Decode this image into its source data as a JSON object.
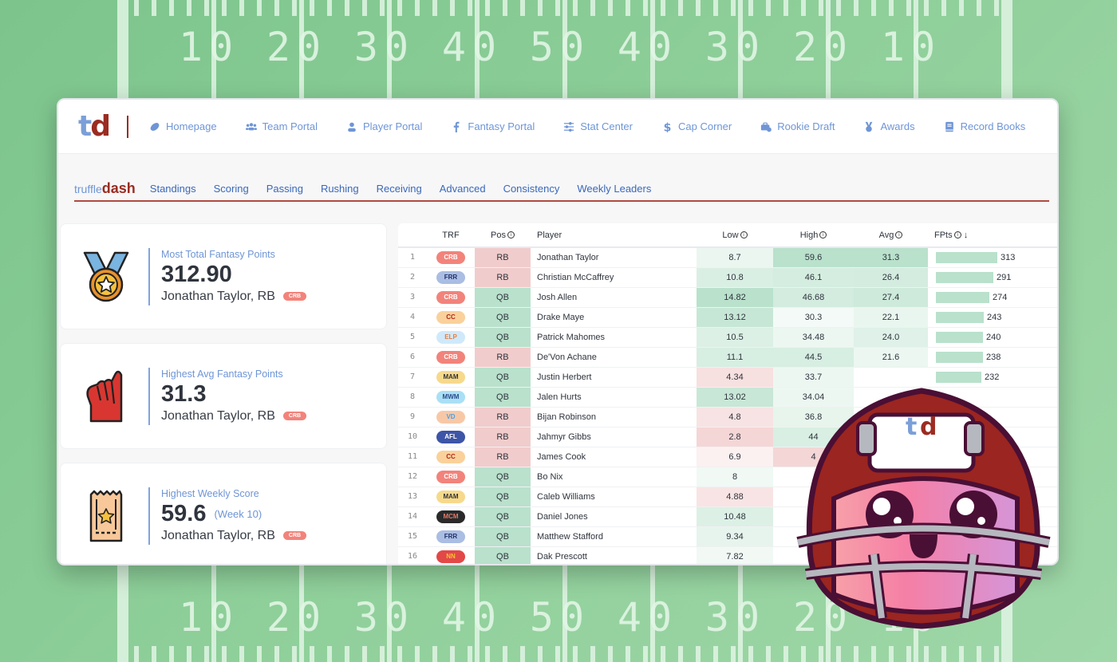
{
  "field": {
    "top_numbers": [
      "10",
      "20",
      "30",
      "40",
      "50",
      "40",
      "30",
      "20",
      "10"
    ],
    "bottom_numbers": [
      "10",
      "20",
      "30",
      "40",
      "50",
      "40",
      "30",
      "20",
      "10"
    ]
  },
  "topnav": {
    "logo": {
      "t": "t",
      "d": "d"
    },
    "items": [
      {
        "label": "Homepage",
        "icon": "football-icon"
      },
      {
        "label": "Team Portal",
        "icon": "users-icon"
      },
      {
        "label": "Player Portal",
        "icon": "user-icon"
      },
      {
        "label": "Fantasy Portal",
        "icon": "f-icon"
      },
      {
        "label": "Stat Center",
        "icon": "sliders-icon"
      },
      {
        "label": "Cap Corner",
        "icon": "dollar-icon"
      },
      {
        "label": "Rookie Draft",
        "icon": "briefcase-icon"
      },
      {
        "label": "Awards",
        "icon": "medal-icon"
      },
      {
        "label": "Record Books",
        "icon": "book-icon"
      }
    ]
  },
  "subnav": {
    "brand_a": "truffle",
    "brand_b": "dash",
    "items": [
      "Standings",
      "Scoring",
      "Passing",
      "Rushing",
      "Receiving",
      "Advanced",
      "Consistency",
      "Weekly Leaders"
    ]
  },
  "stats": [
    {
      "title": "Most Total Fantasy Points",
      "value": "312.90",
      "week": "",
      "player": "Jonathan Taylor, RB",
      "team": "CRB",
      "icon": "medal-icon"
    },
    {
      "title": "Highest Avg Fantasy Points",
      "value": "31.3",
      "week": "",
      "player": "Jonathan Taylor, RB",
      "team": "CRB",
      "icon": "foam-finger-icon"
    },
    {
      "title": "Highest Weekly Score",
      "value": "59.6",
      "week": "(Week 10)",
      "player": "Jonathan Taylor, RB",
      "team": "CRB",
      "icon": "ticket-icon"
    }
  ],
  "table": {
    "headers": {
      "trf": "TRF",
      "pos": "Pos",
      "player": "Player",
      "low": "Low",
      "high": "High",
      "avg": "Avg",
      "fpts": "FPts",
      "sort_arrow": "↓"
    },
    "rows": [
      {
        "rank": "1",
        "team": "CRB",
        "pos": "RB",
        "player": "Jonathan Taylor",
        "low": "8.7",
        "high": "59.6",
        "avg": "31.3",
        "fpts": "313"
      },
      {
        "rank": "2",
        "team": "FRR",
        "pos": "RB",
        "player": "Christian McCaffrey",
        "low": "10.8",
        "high": "46.1",
        "avg": "26.4",
        "fpts": "291"
      },
      {
        "rank": "3",
        "team": "CRB",
        "pos": "QB",
        "player": "Josh Allen",
        "low": "14.82",
        "high": "46.68",
        "avg": "27.4",
        "fpts": "274"
      },
      {
        "rank": "4",
        "team": "CC",
        "pos": "QB",
        "player": "Drake Maye",
        "low": "13.12",
        "high": "30.3",
        "avg": "22.1",
        "fpts": "243"
      },
      {
        "rank": "5",
        "team": "ELP",
        "pos": "QB",
        "player": "Patrick Mahomes",
        "low": "10.5",
        "high": "34.48",
        "avg": "24.0",
        "fpts": "240"
      },
      {
        "rank": "6",
        "team": "CRB",
        "pos": "RB",
        "player": "De'Von Achane",
        "low": "11.1",
        "high": "44.5",
        "avg": "21.6",
        "fpts": "238"
      },
      {
        "rank": "7",
        "team": "MAM",
        "pos": "QB",
        "player": "Justin Herbert",
        "low": "4.34",
        "high": "33.7",
        "avg": "",
        "fpts": "232"
      },
      {
        "rank": "8",
        "team": "MWM",
        "pos": "QB",
        "player": "Jalen Hurts",
        "low": "13.02",
        "high": "34.04",
        "avg": "",
        "fpts": ""
      },
      {
        "rank": "9",
        "team": "VD",
        "pos": "RB",
        "player": "Bijan Robinson",
        "low": "4.8",
        "high": "36.8",
        "avg": "",
        "fpts": ""
      },
      {
        "rank": "10",
        "team": "AFL",
        "pos": "RB",
        "player": "Jahmyr Gibbs",
        "low": "2.8",
        "high": "44",
        "avg": "",
        "fpts": ""
      },
      {
        "rank": "11",
        "team": "CC",
        "pos": "RB",
        "player": "James Cook",
        "low": "6.9",
        "high": "4",
        "avg": "",
        "fpts": ""
      },
      {
        "rank": "12",
        "team": "CRB",
        "pos": "QB",
        "player": "Bo Nix",
        "low": "8",
        "high": "",
        "avg": "",
        "fpts": ""
      },
      {
        "rank": "13",
        "team": "MAM",
        "pos": "QB",
        "player": "Caleb Williams",
        "low": "4.88",
        "high": "",
        "avg": "",
        "fpts": ""
      },
      {
        "rank": "14",
        "team": "MCM",
        "pos": "QB",
        "player": "Daniel Jones",
        "low": "10.48",
        "high": "",
        "avg": "",
        "fpts": ""
      },
      {
        "rank": "15",
        "team": "FRR",
        "pos": "QB",
        "player": "Matthew Stafford",
        "low": "9.34",
        "high": "",
        "avg": "",
        "fpts": ""
      },
      {
        "rank": "16",
        "team": "NN",
        "pos": "QB",
        "player": "Dak Prescott",
        "low": "7.82",
        "high": "",
        "avg": "",
        "fpts": ""
      }
    ]
  },
  "team_colors": {
    "CRB": {
      "bg": "#f2837b",
      "fg": "#ffffff"
    },
    "FRR": {
      "bg": "#aabde3",
      "fg": "#1f2f66"
    },
    "CC": {
      "bg": "#fad19a",
      "fg": "#b2261c"
    },
    "ELP": {
      "bg": "#cfe9fb",
      "fg": "#ef7a35"
    },
    "MAM": {
      "bg": "#f7d98c",
      "fg": "#333333"
    },
    "MWM": {
      "bg": "#a9e0f5",
      "fg": "#2b4a8c"
    },
    "VD": {
      "bg": "#f8c8a6",
      "fg": "#4aa0e8"
    },
    "AFL": {
      "bg": "#3d55a6",
      "fg": "#ffffff"
    },
    "MCM": {
      "bg": "#2a2a2a",
      "fg": "#e07a6b"
    },
    "NN": {
      "bg": "#e24848",
      "fg": "#f7c531"
    }
  },
  "mascot": {
    "helmet_logo_t": "t",
    "helmet_logo_d": "d"
  }
}
